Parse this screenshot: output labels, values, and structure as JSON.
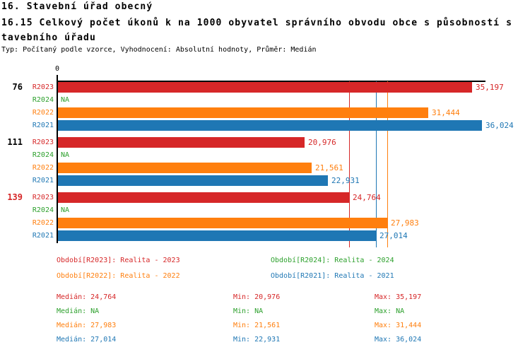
{
  "page": {
    "title_line1": "16. Stavební úřad obecný",
    "title_line2": "16.15 Celkový počet úkonů k na 1000 obyvatel správního obvodu obce s působností s",
    "title_line3": "tavebního úřadu",
    "meta_line": "Typ: Počítaný podle vzorce, Vyhodnocení: Absolutní hodnoty, Průměr: Medián"
  },
  "palette": {
    "red": "#d62728",
    "green": "#2ca02c",
    "orange": "#ff7f0e",
    "blue": "#1f77b4",
    "black": "#000000"
  },
  "chart_data": {
    "type": "bar",
    "orientation": "horizontal",
    "title": "16.15 Celkový počet úkonů k na 1000 obyvatel správního obvodu obce s působností stavebního úřadu",
    "x_axis": {
      "zero_label": "0",
      "min": 0,
      "max": 36024,
      "grid": false
    },
    "groups": [
      {
        "label": "76",
        "label_color": "black",
        "bars": [
          {
            "series": "R2023",
            "value": 35197,
            "display": "35,197",
            "color": "red"
          },
          {
            "series": "R2024",
            "value": null,
            "display": "NA",
            "color": "green"
          },
          {
            "series": "R2022",
            "value": 31444,
            "display": "31,444",
            "color": "orange"
          },
          {
            "series": "R2021",
            "value": 36024,
            "display": "36,024",
            "color": "blue"
          }
        ]
      },
      {
        "label": "111",
        "label_color": "black",
        "bars": [
          {
            "series": "R2023",
            "value": 20976,
            "display": "20,976",
            "color": "red"
          },
          {
            "series": "R2024",
            "value": null,
            "display": "NA",
            "color": "green"
          },
          {
            "series": "R2022",
            "value": 21561,
            "display": "21,561",
            "color": "orange"
          },
          {
            "series": "R2021",
            "value": 22931,
            "display": "22,931",
            "color": "blue"
          }
        ]
      },
      {
        "label": "139",
        "label_color": "red",
        "bars": [
          {
            "series": "R2023",
            "value": 24764,
            "display": "24,764",
            "color": "red"
          },
          {
            "series": "R2024",
            "value": null,
            "display": "NA",
            "color": "green"
          },
          {
            "series": "R2022",
            "value": 27983,
            "display": "27,983",
            "color": "orange"
          },
          {
            "series": "R2021",
            "value": 27014,
            "display": "27,014",
            "color": "blue"
          }
        ]
      }
    ],
    "median_lines": [
      {
        "color": "red",
        "value": 24764
      },
      {
        "color": "blue",
        "value": 27014
      },
      {
        "color": "orange",
        "value": 27983
      }
    ],
    "legend": [
      {
        "text": "Období[R2023]: Realita - 2023",
        "color": "red",
        "row": 0,
        "col": 0
      },
      {
        "text": "Období[R2024]: Realita - 2024",
        "color": "green",
        "row": 0,
        "col": 1
      },
      {
        "text": "Období[R2022]: Realita - 2022",
        "color": "orange",
        "row": 1,
        "col": 0
      },
      {
        "text": "Období[R2021]: Realita - 2021",
        "color": "blue",
        "row": 1,
        "col": 1
      }
    ],
    "stats": [
      {
        "color": "red",
        "cells": [
          "Medián: 24,764",
          "Min: 20,976",
          "Max: 35,197"
        ]
      },
      {
        "color": "green",
        "cells": [
          "Medián: NA",
          "Min: NA",
          "Max: NA"
        ]
      },
      {
        "color": "orange",
        "cells": [
          "Medián: 27,983",
          "Min: 21,561",
          "Max: 31,444"
        ]
      },
      {
        "color": "blue",
        "cells": [
          "Medián: 27,014",
          "Min: 22,931",
          "Max: 36,024"
        ]
      }
    ]
  }
}
